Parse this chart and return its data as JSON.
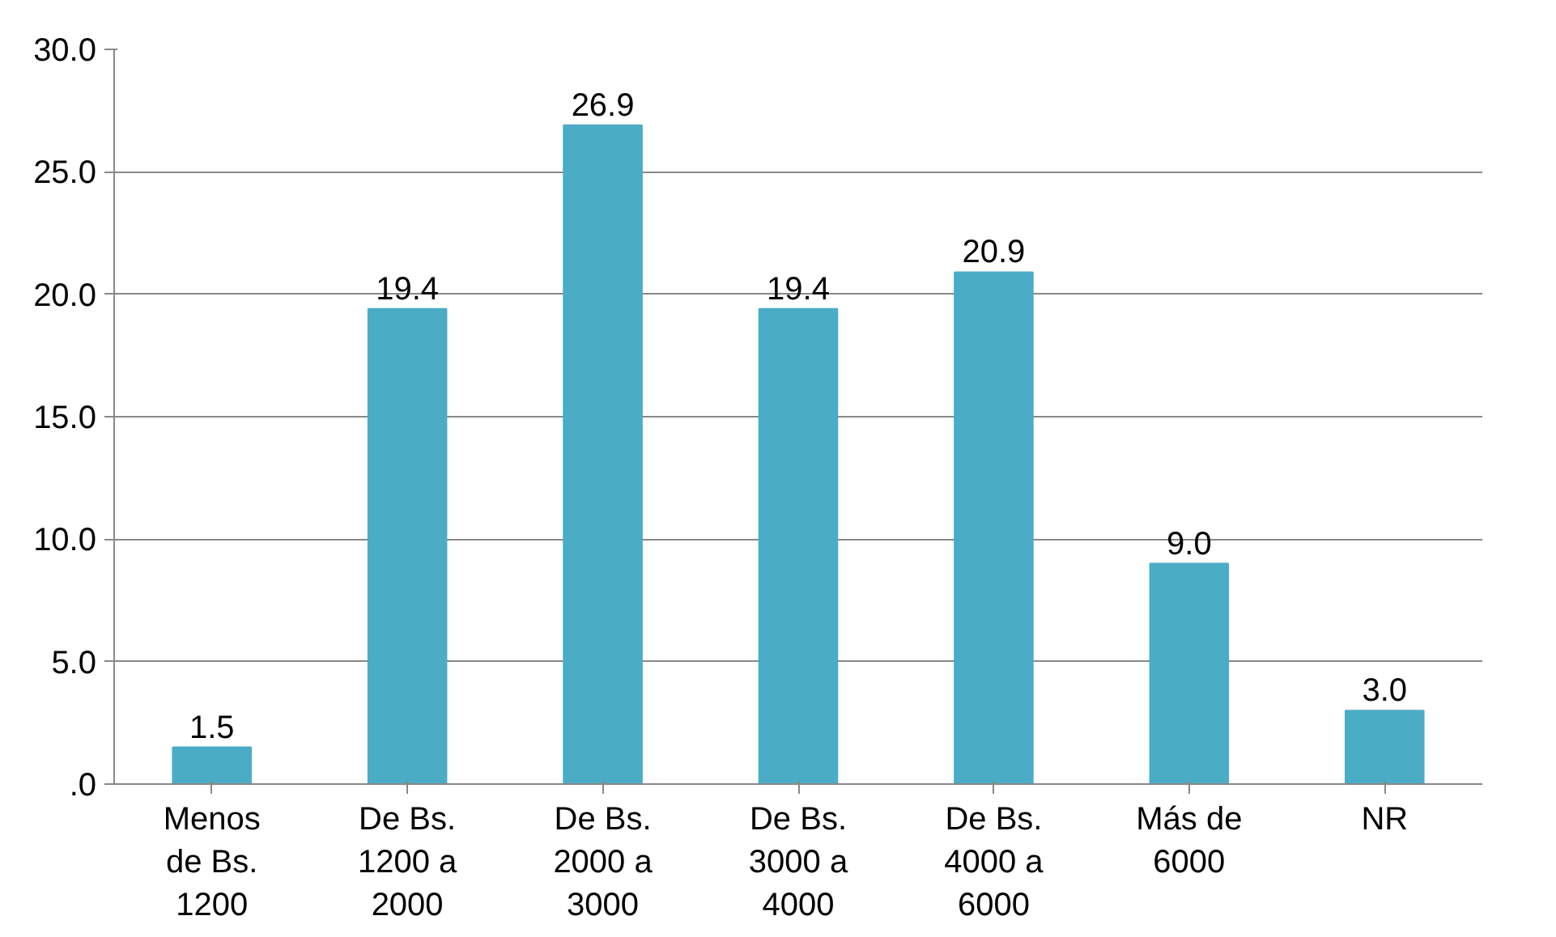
{
  "chart_data": {
    "type": "bar",
    "categories": [
      "Menos de Bs. 1200",
      "De Bs. 1200 a 2000",
      "De Bs. 2000 a 3000",
      "De Bs. 3000 a 4000",
      "De Bs. 4000 a 6000",
      "Más de 6000",
      "NR"
    ],
    "values": [
      1.5,
      19.4,
      26.9,
      19.4,
      20.9,
      9.0,
      3.0
    ],
    "color": "#4bacc6",
    "ylim": [
      0,
      30
    ],
    "yticks": [
      {
        "value": 0,
        "label": ".0"
      },
      {
        "value": 5,
        "label": "5.0"
      },
      {
        "value": 10,
        "label": "10.0"
      },
      {
        "value": 15,
        "label": "15.0"
      },
      {
        "value": 20,
        "label": "20.0"
      },
      {
        "value": 25,
        "label": "25.0"
      },
      {
        "value": 30,
        "label": "30.0"
      }
    ],
    "grid": "y",
    "value_labels": [
      "1.5",
      "19.4",
      "26.9",
      "19.4",
      "20.9",
      "9.0",
      "3.0"
    ]
  }
}
